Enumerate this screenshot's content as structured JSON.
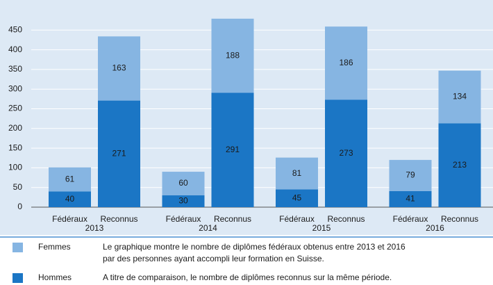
{
  "chart_data": {
    "type": "stacked-bar",
    "categories": [
      "Fédéraux",
      "Reconnus",
      "Fédéraux",
      "Reconnus",
      "Fédéraux",
      "Reconnus",
      "Fédéraux",
      "Reconnus"
    ],
    "groups": [
      "2013",
      "2014",
      "2015",
      "2016"
    ],
    "series": [
      {
        "name": "Femmes",
        "color": "#86b5e2",
        "values": [
          61,
          163,
          60,
          188,
          81,
          186,
          79,
          134
        ]
      },
      {
        "name": "Hommes",
        "color": "#1b76c5",
        "values": [
          40,
          271,
          30,
          291,
          45,
          273,
          41,
          213
        ]
      }
    ],
    "ylim": [
      0,
      500
    ],
    "yticks": [
      0,
      50,
      100,
      150,
      200,
      250,
      300,
      350,
      400,
      450
    ],
    "grid": true,
    "note": [
      "Le graphique montre le nombre de diplômes fédéraux obtenus entre 2013 et 2016",
      "par des personnes ayant accompli leur formation en Suisse.",
      "A titre de comparaison, le nombre de diplômes reconnus sur la même période."
    ]
  }
}
